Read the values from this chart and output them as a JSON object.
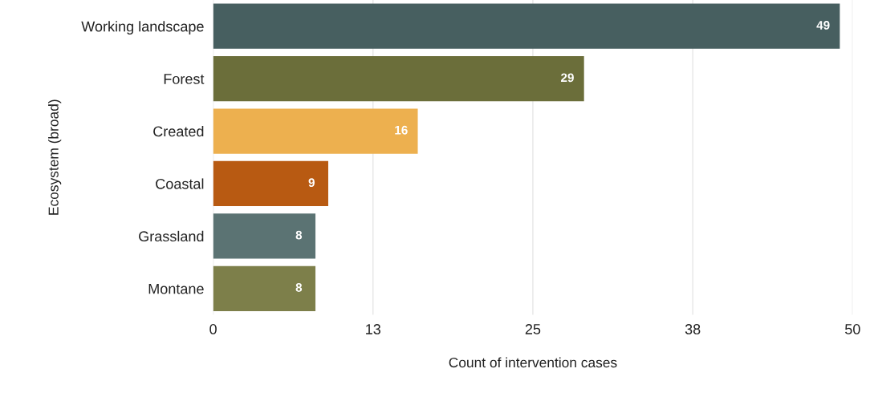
{
  "chart_data": {
    "type": "bar",
    "orientation": "horizontal",
    "xlabel": "Count of intervention cases",
    "ylabel": "Ecosystem (broad)",
    "categories": [
      "Working landscape",
      "Forest",
      "Created",
      "Coastal",
      "Grassland",
      "Montane"
    ],
    "values": [
      49,
      29,
      16,
      9,
      8,
      8
    ],
    "colors": [
      "#475f60",
      "#6b6e3a",
      "#edb04f",
      "#b85a12",
      "#5b7373",
      "#7d7f4a"
    ],
    "xlim": [
      0,
      50
    ],
    "xticks": [
      0,
      {
        "value": 12.5,
        "label": "13"
      },
      25,
      {
        "value": 37.5,
        "label": "38"
      },
      50
    ],
    "grid": "x",
    "data_labels": true
  }
}
